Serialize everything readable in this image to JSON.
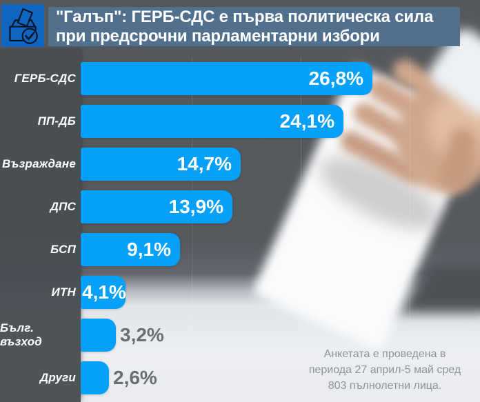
{
  "header": {
    "title": "\"Галъп\": ГЕРБ-СДС е първа политическа сила\nпри предсрочни парламентарни избори",
    "source": "Галъп"
  },
  "chart_data": {
    "type": "bar",
    "orientation": "horizontal",
    "title": "\"Галъп\": ГЕРБ-СДС е първа политическа сила при предсрочни парламентарни избори",
    "categories": [
      "ГЕРБ-СДС",
      "ПП-ДБ",
      "Възраждане",
      "ДПС",
      "БСП",
      "ИТН",
      "Бълг. възход",
      "Други"
    ],
    "values": [
      26.8,
      24.1,
      14.7,
      13.9,
      9.1,
      4.1,
      3.2,
      2.6
    ],
    "value_labels": [
      "26,8%",
      "24,1%",
      "14,7%",
      "13,9%",
      "9,1%",
      "4,1%",
      "3,2%",
      "2,6%"
    ],
    "unit": "%",
    "xlim": [
      0,
      28
    ],
    "grid": "faint vertical lines",
    "legend": false,
    "bar_color": "#05a0fa"
  },
  "footer": {
    "note": "Анкетата е проведена в\nпериода 27 април-5 май сред\n803 пълнолетни лица."
  },
  "colors": {
    "bar_blue": "#05a0fa",
    "icon_tile_blue": "#0f66c1",
    "title_band": "#50708e",
    "background_dark": "#54575c",
    "background_light": "#eceef1",
    "outside_value_text": "#696d74",
    "note_text": "#8d929b",
    "label_text": "#ffffff"
  },
  "icons": {
    "header_icon": "ballot-box-check-icon"
  }
}
